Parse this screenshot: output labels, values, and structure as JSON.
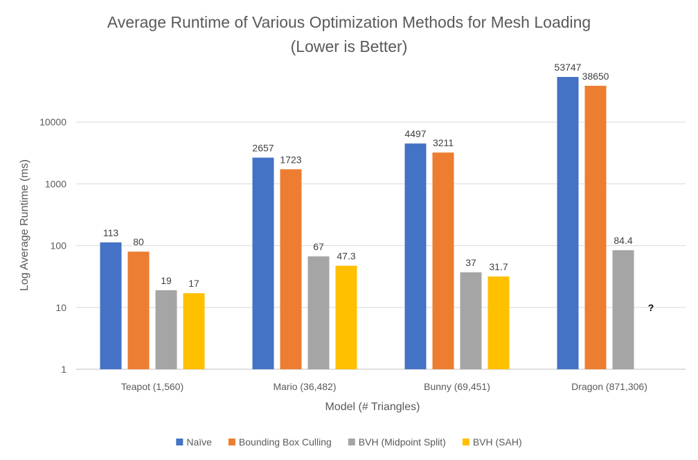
{
  "chart_data": {
    "type": "bar",
    "title_line1": "Average Runtime of Various Optimization Methods for Mesh Loading",
    "title_line2": "(Lower is Better)",
    "xlabel": "Model (# Triangles)",
    "ylabel": "Log Average Runtime (ms)",
    "yscale": "log",
    "ylim": [
      1,
      100000
    ],
    "yticks": [
      {
        "value": 1,
        "label": "1"
      },
      {
        "value": 10,
        "label": "10"
      },
      {
        "value": 100,
        "label": "100"
      },
      {
        "value": 1000,
        "label": "1000"
      },
      {
        "value": 10000,
        "label": "10000"
      }
    ],
    "grid": true,
    "legend_position": "bottom",
    "categories": [
      "Teapot (1,560)",
      "Mario (36,482)",
      "Bunny (69,451)",
      "Dragon (871,306)"
    ],
    "series": [
      {
        "name": "Naïve",
        "color": "#4472C4",
        "values": [
          113,
          2657,
          4497,
          53747
        ],
        "labels": [
          "113",
          "2657",
          "4497",
          "53747"
        ]
      },
      {
        "name": "Bounding Box Culling",
        "color": "#ED7D31",
        "values": [
          80,
          1723,
          3211,
          38650
        ],
        "labels": [
          "80",
          "1723",
          "3211",
          "38650"
        ]
      },
      {
        "name": "BVH (Midpoint Split)",
        "color": "#A5A5A5",
        "values": [
          19,
          67,
          37,
          84.4
        ],
        "labels": [
          "19",
          "67",
          "37",
          "84.4"
        ]
      },
      {
        "name": "BVH (SAH)",
        "color": "#FFC000",
        "values": [
          17,
          47.3,
          31.7,
          null
        ],
        "labels": [
          "17",
          "47.3",
          "31.7",
          ""
        ]
      }
    ],
    "annotations": [
      {
        "category_index": 3,
        "series_index": 3,
        "text": "?",
        "value": 10
      }
    ]
  }
}
